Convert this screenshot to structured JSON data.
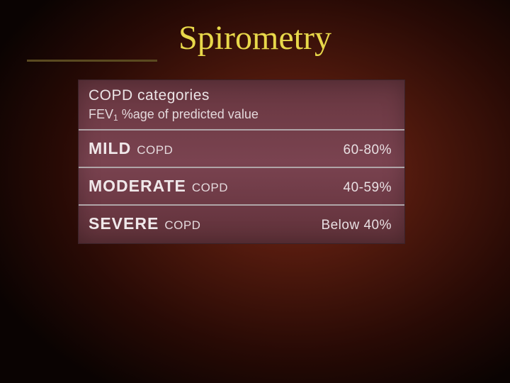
{
  "title": "Spirometry",
  "table": {
    "header": "COPD categories",
    "subheader_prefix": "FEV",
    "subheader_sub": "1",
    "subheader_rest": " %age of predicted value",
    "rows": [
      {
        "strong": "MILD",
        "rest": "COPD",
        "value": "60-80%"
      },
      {
        "strong": "MODERATE",
        "rest": "COPD",
        "value": "40-59%"
      },
      {
        "strong": "SEVERE",
        "rest": "COPD",
        "value": "Below 40%"
      }
    ],
    "colors": {
      "title_color": "#e8d84a",
      "table_bg_top": "#64353e",
      "table_bg_mid": "#7a4350",
      "divider_color": "#b0a5a8",
      "text_color": "#ebe4e6"
    },
    "fontsize": {
      "title": 48,
      "header": 21,
      "subheader": 18,
      "category_strong": 23,
      "category_rest": 17,
      "value": 19
    }
  }
}
